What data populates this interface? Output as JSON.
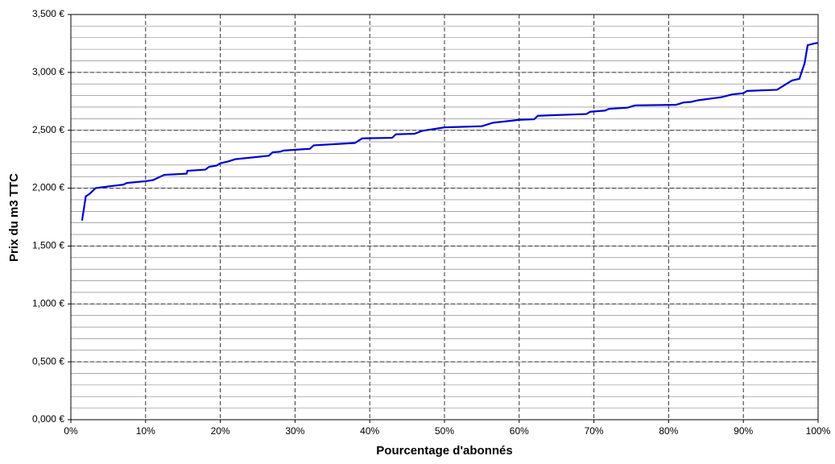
{
  "chart_data": {
    "type": "line",
    "x_label": "Pourcentage d'abonnés",
    "y_label": "Prix du m3 TTC",
    "xlim": [
      0,
      100
    ],
    "xticks": [
      {
        "value": 0,
        "label": "0%"
      },
      {
        "value": 10,
        "label": "10%"
      },
      {
        "value": 20,
        "label": "20%"
      },
      {
        "value": 30,
        "label": "30%"
      },
      {
        "value": 40,
        "label": "40%"
      },
      {
        "value": 50,
        "label": "50%"
      },
      {
        "value": 60,
        "label": "60%"
      },
      {
        "value": 70,
        "label": "70%"
      },
      {
        "value": 80,
        "label": "80%"
      },
      {
        "value": 90,
        "label": "90%"
      },
      {
        "value": 100,
        "label": "100%"
      }
    ],
    "ylim": [
      0,
      3500
    ],
    "yticks": [
      {
        "value": 0,
        "label": "0,000 €"
      },
      {
        "value": 500,
        "label": "0,500 €"
      },
      {
        "value": 1000,
        "label": "1,000 €"
      },
      {
        "value": 1500,
        "label": "1,500 €"
      },
      {
        "value": 2000,
        "label": "2,000 €"
      },
      {
        "value": 2500,
        "label": "2,500 €"
      },
      {
        "value": 3000,
        "label": "3,000 €"
      },
      {
        "value": 3500,
        "label": "3,500 €"
      }
    ],
    "y_minor_step": 100,
    "grid": true,
    "series": [
      {
        "color": "#0000cc",
        "x": [
          1.5,
          2,
          2.5,
          3.3,
          5,
          7,
          7.5,
          10,
          11,
          12.5,
          15.5,
          15.6,
          18,
          18.5,
          19.5,
          20,
          21,
          22,
          26.5,
          27,
          28,
          28.5,
          32,
          32.5,
          38,
          39,
          43,
          43.5,
          46,
          47,
          49,
          50,
          55,
          56.5,
          60,
          62,
          62.5,
          64.5,
          69,
          69.5,
          71.5,
          72,
          74.5,
          75.5,
          81,
          82,
          83,
          84,
          87,
          88.5,
          90,
          90.5,
          94.5,
          96,
          96.5,
          97.5,
          98.2,
          98.6,
          99.5,
          100
        ],
        "values": [
          1720,
          1930,
          1950,
          2000,
          2015,
          2030,
          2045,
          2060,
          2070,
          2115,
          2125,
          2150,
          2160,
          2185,
          2195,
          2215,
          2230,
          2250,
          2280,
          2310,
          2315,
          2325,
          2340,
          2370,
          2390,
          2430,
          2435,
          2465,
          2470,
          2495,
          2515,
          2525,
          2535,
          2565,
          2590,
          2595,
          2625,
          2630,
          2640,
          2660,
          2670,
          2685,
          2695,
          2715,
          2720,
          2740,
          2745,
          2760,
          2785,
          2810,
          2820,
          2840,
          2850,
          2910,
          2930,
          2945,
          3080,
          3235,
          3250,
          3255
        ]
      }
    ]
  }
}
